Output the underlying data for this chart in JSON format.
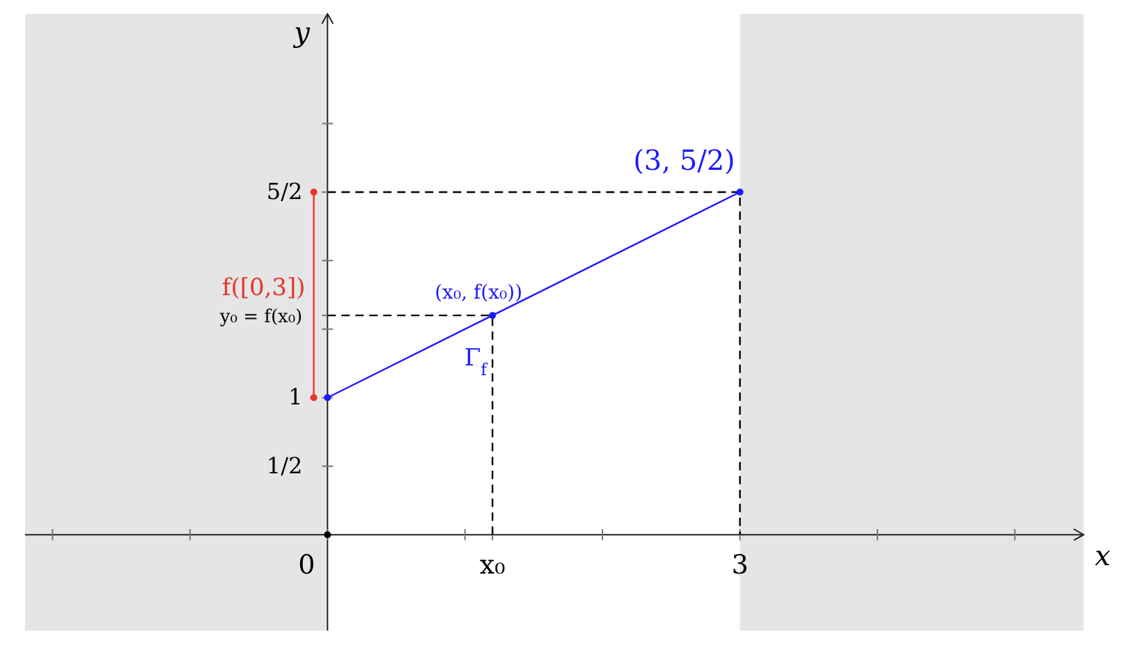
{
  "chart_data": {
    "type": "line",
    "xlabel": "x",
    "ylabel": "y",
    "xlim": [
      -2.2,
      5.5
    ],
    "ylim": [
      -0.7,
      3.8
    ],
    "xticks": [
      {
        "value": -2,
        "label": null
      },
      {
        "value": -1,
        "label": null
      },
      0,
      {
        "value": 1,
        "label": null
      },
      {
        "value": 1.2,
        "label": "x₀"
      },
      {
        "value": 2,
        "label": null
      },
      3,
      {
        "value": 4,
        "label": null
      },
      {
        "value": 5,
        "label": null
      }
    ],
    "yticks": [
      {
        "value": 0.5,
        "label": "1/2"
      },
      1,
      {
        "value": 1.5,
        "label": null
      },
      {
        "value": 1.6,
        "label": "y₀ = f(x₀)"
      },
      {
        "value": 2,
        "label": null
      },
      {
        "value": 2.5,
        "label": "5/2"
      },
      {
        "value": 3,
        "label": null
      }
    ],
    "grid": false,
    "bands": [
      {
        "axis": "x",
        "from": -2.2,
        "to": 0,
        "color": "#e5e5e5"
      },
      {
        "axis": "x",
        "from": 3,
        "to": 5.5,
        "color": "#e5e5e5"
      }
    ],
    "series": [
      {
        "x": [
          0,
          1.2,
          1.2
        ],
        "values": [
          1.6,
          1.6,
          0
        ],
        "color": "#000000",
        "line_style": "dashed",
        "marker": "none"
      },
      {
        "x": [
          0,
          3,
          3
        ],
        "values": [
          2.5,
          2.5,
          0
        ],
        "color": "#000000",
        "line_style": "dashed",
        "marker": "none"
      },
      {
        "name": "f([0,3])",
        "x": [
          -0.1,
          -0.1
        ],
        "values": [
          1,
          2.5
        ],
        "color": "#e8342c",
        "line_style": "solid",
        "marker": "circle"
      },
      {
        "name": "Γ$_{f}$",
        "x": [
          0,
          1.2,
          3
        ],
        "values": [
          1,
          1.6,
          2.5
        ],
        "color": "#1a1aff",
        "line_style": "solid",
        "marker": "circle"
      },
      {
        "type": "scatter",
        "x": [
          0
        ],
        "values": [
          0
        ],
        "color": "#000000",
        "marker": "circle"
      }
    ],
    "annotations": [
      {
        "text": "(x₀, f(x₀))",
        "x": 1.2,
        "y": 1.6
      },
      {
        "text": "(3, 5/2)",
        "x": 3,
        "y": 2.5
      }
    ]
  }
}
